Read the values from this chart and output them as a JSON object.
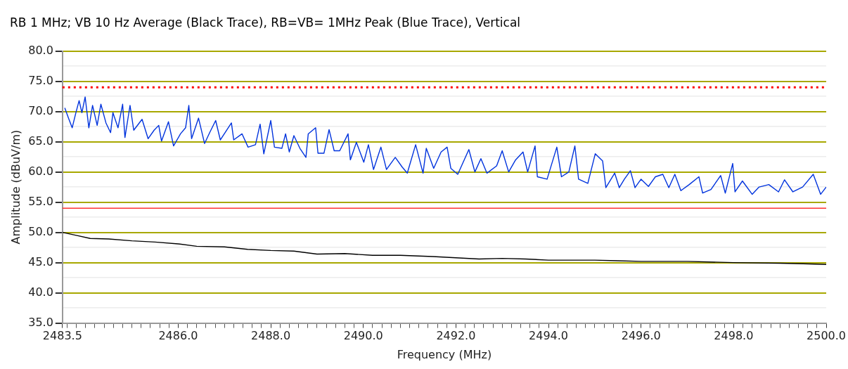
{
  "chart_data": {
    "type": "line",
    "title": "RB 1 MHz; VB 10 Hz Average (Black Trace), RB=VB= 1MHz Peak (Blue Trace), Vertical",
    "xlabel": "Frequency (MHz)",
    "ylabel": "Amplitude (dBuV/m)",
    "xlim": [
      2483.5,
      2500.0
    ],
    "ylim": [
      35,
      80
    ],
    "xticks": [
      2483.5,
      {
        "value": 2483.6,
        "label": null
      },
      {
        "value": 2483.8,
        "label": null
      },
      {
        "value": 2484.0,
        "label": null
      },
      {
        "value": 2484.2,
        "label": null
      },
      {
        "value": 2484.4,
        "label": null
      },
      {
        "value": 2484.6,
        "label": null
      },
      {
        "value": 2484.8,
        "label": null
      },
      {
        "value": 2485.0,
        "label": null
      },
      {
        "value": 2485.2,
        "label": null
      },
      {
        "value": 2485.4,
        "label": null
      },
      {
        "value": 2485.6,
        "label": null
      },
      {
        "value": 2485.8,
        "label": null
      },
      {
        "value": 2486,
        "label": "2486.0"
      },
      {
        "value": 2486.2,
        "label": null
      },
      {
        "value": 2486.4,
        "label": null
      },
      {
        "value": 2486.6,
        "label": null
      },
      {
        "value": 2486.8,
        "label": null
      },
      {
        "value": 2487.0,
        "label": null
      },
      {
        "value": 2487.2,
        "label": null
      },
      {
        "value": 2487.4,
        "label": null
      },
      {
        "value": 2487.6,
        "label": null
      },
      {
        "value": 2487.8,
        "label": null
      },
      {
        "value": 2488,
        "label": "2488.0"
      },
      {
        "value": 2488.2,
        "label": null
      },
      {
        "value": 2488.4,
        "label": null
      },
      {
        "value": 2488.6,
        "label": null
      },
      {
        "value": 2488.8,
        "label": null
      },
      {
        "value": 2489.0,
        "label": null
      },
      {
        "value": 2489.2,
        "label": null
      },
      {
        "value": 2489.4,
        "label": null
      },
      {
        "value": 2489.6,
        "label": null
      },
      {
        "value": 2489.8,
        "label": null
      },
      {
        "value": 2490,
        "label": "2490.0"
      },
      {
        "value": 2490.2,
        "label": null
      },
      {
        "value": 2490.4,
        "label": null
      },
      {
        "value": 2490.6,
        "label": null
      },
      {
        "value": 2490.8,
        "label": null
      },
      {
        "value": 2491.0,
        "label": null
      },
      {
        "value": 2491.2,
        "label": null
      },
      {
        "value": 2491.4,
        "label": null
      },
      {
        "value": 2491.6,
        "label": null
      },
      {
        "value": 2491.8,
        "label": null
      },
      {
        "value": 2492,
        "label": "2492.0"
      },
      {
        "value": 2492.2,
        "label": null
      },
      {
        "value": 2492.4,
        "label": null
      },
      {
        "value": 2492.6,
        "label": null
      },
      {
        "value": 2492.8,
        "label": null
      },
      {
        "value": 2493.0,
        "label": null
      },
      {
        "value": 2493.2,
        "label": null
      },
      {
        "value": 2493.4,
        "label": null
      },
      {
        "value": 2493.6,
        "label": null
      },
      {
        "value": 2493.8,
        "label": null
      },
      {
        "value": 2494,
        "label": "2494.0"
      },
      {
        "value": 2494.2,
        "label": null
      },
      {
        "value": 2494.4,
        "label": null
      },
      {
        "value": 2494.6,
        "label": null
      },
      {
        "value": 2494.8,
        "label": null
      },
      {
        "value": 2495.0,
        "label": null
      },
      {
        "value": 2495.2,
        "label": null
      },
      {
        "value": 2495.4,
        "label": null
      },
      {
        "value": 2495.6,
        "label": null
      },
      {
        "value": 2495.8,
        "label": null
      },
      {
        "value": 2496,
        "label": "2496.0"
      },
      {
        "value": 2496.2,
        "label": null
      },
      {
        "value": 2496.4,
        "label": null
      },
      {
        "value": 2496.6,
        "label": null
      },
      {
        "value": 2496.8,
        "label": null
      },
      {
        "value": 2497.0,
        "label": null
      },
      {
        "value": 2497.2,
        "label": null
      },
      {
        "value": 2497.4,
        "label": null
      },
      {
        "value": 2497.6,
        "label": null
      },
      {
        "value": 2497.8,
        "label": null
      },
      {
        "value": 2498,
        "label": "2498.0"
      },
      {
        "value": 2498.2,
        "label": null
      },
      {
        "value": 2498.4,
        "label": null
      },
      {
        "value": 2498.6,
        "label": null
      },
      {
        "value": 2498.8,
        "label": null
      },
      {
        "value": 2499.0,
        "label": null
      },
      {
        "value": 2499.2,
        "label": null
      },
      {
        "value": 2499.4,
        "label": null
      },
      {
        "value": 2499.6,
        "label": null
      },
      {
        "value": 2499.8,
        "label": null
      },
      {
        "value": 2500,
        "label": "2500.0"
      }
    ],
    "yticks": [
      {
        "value": 35,
        "label": "35.0"
      },
      {
        "value": 37.5,
        "label": null
      },
      {
        "value": 40,
        "label": "40.0"
      },
      {
        "value": 42.5,
        "label": null
      },
      {
        "value": 45,
        "label": "45.0"
      },
      {
        "value": 47.5,
        "label": null
      },
      {
        "value": 50,
        "label": "50.0"
      },
      {
        "value": 52.5,
        "label": null
      },
      {
        "value": 55,
        "label": "55.0"
      },
      {
        "value": 57.5,
        "label": null
      },
      {
        "value": 60,
        "label": "60.0"
      },
      {
        "value": 62.5,
        "label": null
      },
      {
        "value": 65,
        "label": "65.0"
      },
      {
        "value": 67.5,
        "label": null
      },
      {
        "value": 70,
        "label": "70.0"
      },
      {
        "value": 72.5,
        "label": null
      },
      {
        "value": 75,
        "label": "75.0"
      },
      {
        "value": 77.5,
        "label": null
      },
      {
        "value": 80,
        "label": "80.0"
      }
    ],
    "grid": "y",
    "marker": "none",
    "line_style": "solid",
    "ref_lines": [
      {
        "axis": "y",
        "value": 74,
        "color": "#ff0000",
        "line_style": "dotted"
      },
      {
        "axis": "y",
        "value": 54,
        "color": "#ff3030",
        "line_style": "solid"
      }
    ],
    "series": [
      {
        "color": "#0033dd",
        "x": [
          2483.55,
          2483.63,
          2483.71,
          2483.79,
          2483.86,
          2483.92,
          2483.99,
          2484.07,
          2484.15,
          2484.25,
          2484.33,
          2484.44,
          2484.54,
          2484.59,
          2484.7,
          2484.8,
          2484.85,
          2484.96,
          2485.04,
          2485.22,
          2485.35,
          2485.48,
          2485.58,
          2485.64,
          2485.79,
          2485.9,
          2486.05,
          2486.16,
          2486.23,
          2486.29,
          2486.44,
          2486.57,
          2486.68,
          2486.81,
          2486.91,
          2487.15,
          2487.2,
          2487.38,
          2487.51,
          2487.67,
          2487.77,
          2487.85,
          2488.0,
          2488.08,
          2488.24,
          2488.32,
          2488.4,
          2488.5,
          2488.63,
          2488.76,
          2488.81,
          2488.97,
          2489.02,
          2489.15,
          2489.26,
          2489.37,
          2489.49,
          2489.67,
          2489.72,
          2489.85,
          2490.01,
          2490.11,
          2490.22,
          2490.38,
          2490.5,
          2490.69,
          2490.84,
          2490.95,
          2491.13,
          2491.29,
          2491.36,
          2491.52,
          2491.68,
          2491.81,
          2491.89,
          2492.04,
          2492.28,
          2492.41,
          2492.54,
          2492.67,
          2492.88,
          2493.0,
          2493.14,
          2493.29,
          2493.45,
          2493.55,
          2493.71,
          2493.76,
          2493.97,
          2494.18,
          2494.28,
          2494.44,
          2494.57,
          2494.65,
          2494.85,
          2495.01,
          2495.17,
          2495.24,
          2495.43,
          2495.53,
          2495.64,
          2495.77,
          2495.87,
          2496.0,
          2496.16,
          2496.31,
          2496.47,
          2496.6,
          2496.73,
          2496.86,
          2497.04,
          2497.25,
          2497.33,
          2497.51,
          2497.72,
          2497.82,
          2497.98,
          2498.03,
          2498.19,
          2498.4,
          2498.55,
          2498.76,
          2498.97,
          2499.1,
          2499.28,
          2499.49,
          2499.72,
          2499.88,
          2500.0
        ],
        "values": [
          70.6,
          68.9,
          67.3,
          69.8,
          71.8,
          69.8,
          72.4,
          67.3,
          71.0,
          67.7,
          71.2,
          68.1,
          66.5,
          69.8,
          67.3,
          71.2,
          65.7,
          71.0,
          66.9,
          68.7,
          65.5,
          66.9,
          67.7,
          65.1,
          68.3,
          64.3,
          66.3,
          67.3,
          71.0,
          65.5,
          68.9,
          64.7,
          66.5,
          68.5,
          65.3,
          68.1,
          65.3,
          66.3,
          64.1,
          64.5,
          67.9,
          63.0,
          68.5,
          64.1,
          63.9,
          66.3,
          63.3,
          66.0,
          63.9,
          62.4,
          66.3,
          67.3,
          63.1,
          63.1,
          67.0,
          63.5,
          63.5,
          66.3,
          62.0,
          64.9,
          61.6,
          64.5,
          60.4,
          64.1,
          60.4,
          62.4,
          60.8,
          59.8,
          64.5,
          59.8,
          63.9,
          60.6,
          63.3,
          64.1,
          60.6,
          59.6,
          63.7,
          60.0,
          62.2,
          59.8,
          61.0,
          63.5,
          60.0,
          62.0,
          63.3,
          60.0,
          64.3,
          59.2,
          58.8,
          64.1,
          59.2,
          60.0,
          64.3,
          58.8,
          58.1,
          63.0,
          61.8,
          57.4,
          59.8,
          57.4,
          58.8,
          60.2,
          57.4,
          58.8,
          57.6,
          59.2,
          59.6,
          57.4,
          59.6,
          56.9,
          57.9,
          59.2,
          56.5,
          57.1,
          59.4,
          56.5,
          61.4,
          56.7,
          58.5,
          56.3,
          57.5,
          57.9,
          56.7,
          58.7,
          56.7,
          57.5,
          59.6,
          56.3,
          57.5
        ]
      },
      {
        "color": "#000000",
        "x": [
          2483.5,
          2483.8,
          2484.1,
          2484.5,
          2485.0,
          2485.5,
          2486.0,
          2486.4,
          2487.0,
          2487.5,
          2488.0,
          2488.5,
          2489.0,
          2489.6,
          2490.2,
          2490.8,
          2491.5,
          2492.0,
          2492.5,
          2493.0,
          2493.5,
          2494.0,
          2494.5,
          2495.0,
          2495.5,
          2496.0,
          2497.0,
          2498.0,
          2499.0,
          2499.5,
          2500.0
        ],
        "values": [
          50.0,
          49.5,
          49.0,
          48.9,
          48.6,
          48.4,
          48.1,
          47.7,
          47.6,
          47.2,
          47.0,
          46.9,
          46.4,
          46.5,
          46.2,
          46.2,
          46.0,
          45.8,
          45.6,
          45.7,
          45.6,
          45.4,
          45.4,
          45.4,
          45.3,
          45.2,
          45.2,
          45.0,
          44.9,
          44.8,
          44.7
        ]
      }
    ]
  }
}
